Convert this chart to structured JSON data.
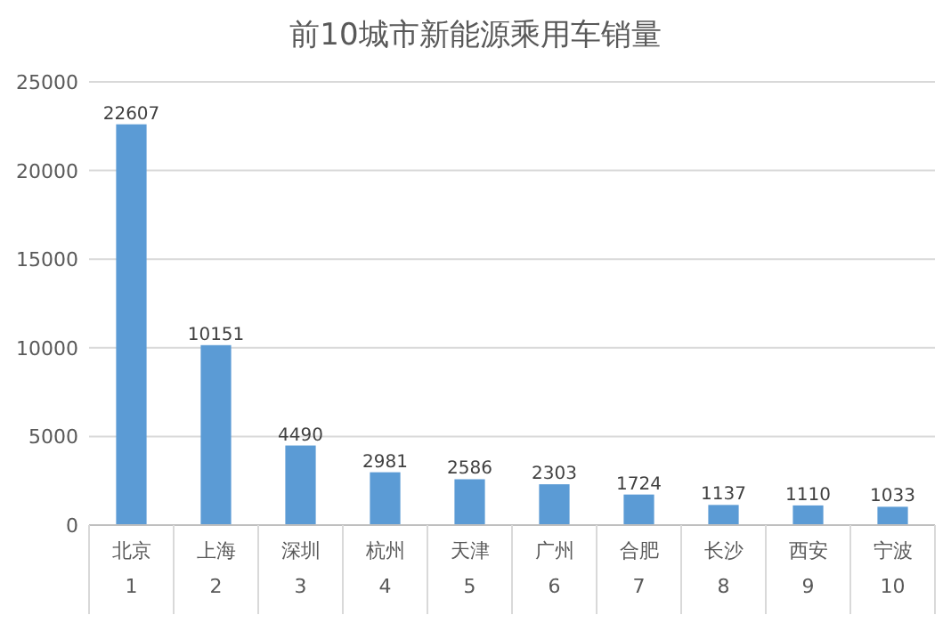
{
  "chart_data": {
    "type": "bar",
    "title": "前10城市新能源乘用车销量",
    "categories": [
      "北京\n1",
      "上海\n2",
      "深圳\n3",
      "杭州\n4",
      "天津\n5",
      "广州\n6",
      "合肥\n7",
      "长沙\n8",
      "西安\n9",
      "宁波\n10"
    ],
    "values": [
      22607,
      10151,
      4490,
      2981,
      2586,
      2303,
      1724,
      1137,
      1110,
      1033
    ],
    "color": "#5b9bd5",
    "ylim": [
      0,
      25000
    ],
    "yticks": [
      0,
      5000,
      10000,
      15000,
      20000,
      25000
    ],
    "grid": "y",
    "data_labels": true
  }
}
